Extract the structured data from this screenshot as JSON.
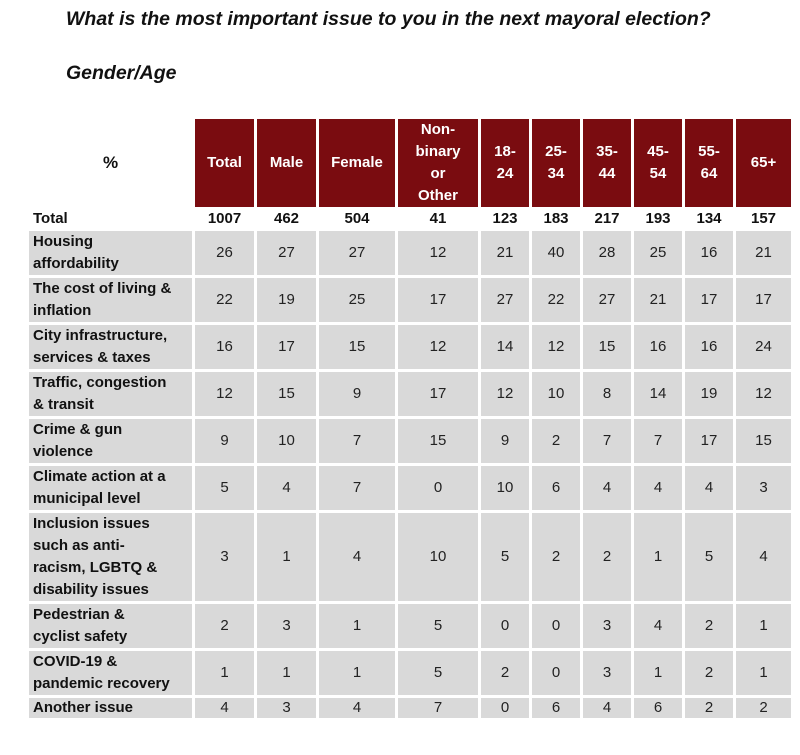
{
  "title": "What is the most important issue to you in the next mayoral election?",
  "subtitle": "Gender/Age",
  "chart_data": {
    "type": "table",
    "corner_label": "%",
    "columns": [
      "Total",
      "Male",
      "Female",
      "Non-binary or Other",
      "18-24",
      "25-34",
      "35-44",
      "45-54",
      "55-64",
      "65+"
    ],
    "header_lines": [
      [
        "Total"
      ],
      [
        "Male"
      ],
      [
        "Female"
      ],
      [
        "Non-",
        "binary",
        "or",
        "Other"
      ],
      [
        "18-",
        "24"
      ],
      [
        "25-",
        "34"
      ],
      [
        "35-",
        "44"
      ],
      [
        "45-",
        "54"
      ],
      [
        "55-",
        "64"
      ],
      [
        "65+"
      ]
    ],
    "base_row": {
      "label": "Total",
      "values": [
        "1007",
        "462",
        "504",
        "41",
        "123",
        "183",
        "217",
        "193",
        "134",
        "157"
      ]
    },
    "rows": [
      {
        "label_lines": [
          "Housing",
          "affordability"
        ],
        "values": [
          "26",
          "27",
          "27",
          "12",
          "21",
          "40",
          "28",
          "25",
          "16",
          "21"
        ]
      },
      {
        "label_lines": [
          "The cost of living &",
          "inflation"
        ],
        "values": [
          "22",
          "19",
          "25",
          "17",
          "27",
          "22",
          "27",
          "21",
          "17",
          "17"
        ]
      },
      {
        "label_lines": [
          "City infrastructure,",
          "services & taxes"
        ],
        "values": [
          "16",
          "17",
          "15",
          "12",
          "14",
          "12",
          "15",
          "16",
          "16",
          "24"
        ]
      },
      {
        "label_lines": [
          "Traffic, congestion",
          "& transit"
        ],
        "values": [
          "12",
          "15",
          "9",
          "17",
          "12",
          "10",
          "8",
          "14",
          "19",
          "12"
        ]
      },
      {
        "label_lines": [
          "Crime & gun",
          "violence"
        ],
        "values": [
          "9",
          "10",
          "7",
          "15",
          "9",
          "2",
          "7",
          "7",
          "17",
          "15"
        ]
      },
      {
        "label_lines": [
          "Climate action at a",
          "municipal level"
        ],
        "values": [
          "5",
          "4",
          "7",
          "0",
          "10",
          "6",
          "4",
          "4",
          "4",
          "3"
        ]
      },
      {
        "label_lines": [
          "Inclusion issues",
          "such as anti-",
          "racism, LGBTQ &",
          "disability issues"
        ],
        "values": [
          "3",
          "1",
          "4",
          "10",
          "5",
          "2",
          "2",
          "1",
          "5",
          "4"
        ]
      },
      {
        "label_lines": [
          "Pedestrian &",
          "cyclist safety"
        ],
        "values": [
          "2",
          "3",
          "1",
          "5",
          "0",
          "0",
          "3",
          "4",
          "2",
          "1"
        ]
      },
      {
        "label_lines": [
          "COVID-19 &",
          "pandemic recovery"
        ],
        "values": [
          "1",
          "1",
          "1",
          "5",
          "2",
          "0",
          "3",
          "1",
          "2",
          "1"
        ]
      },
      {
        "label_lines": [
          "Another issue"
        ],
        "values": [
          "4",
          "3",
          "4",
          "7",
          "0",
          "6",
          "4",
          "6",
          "2",
          "2"
        ]
      }
    ]
  },
  "colors": {
    "header_bg": "#7a0c10",
    "header_text": "#ffffff",
    "row_bg": "#d9d9d9"
  }
}
